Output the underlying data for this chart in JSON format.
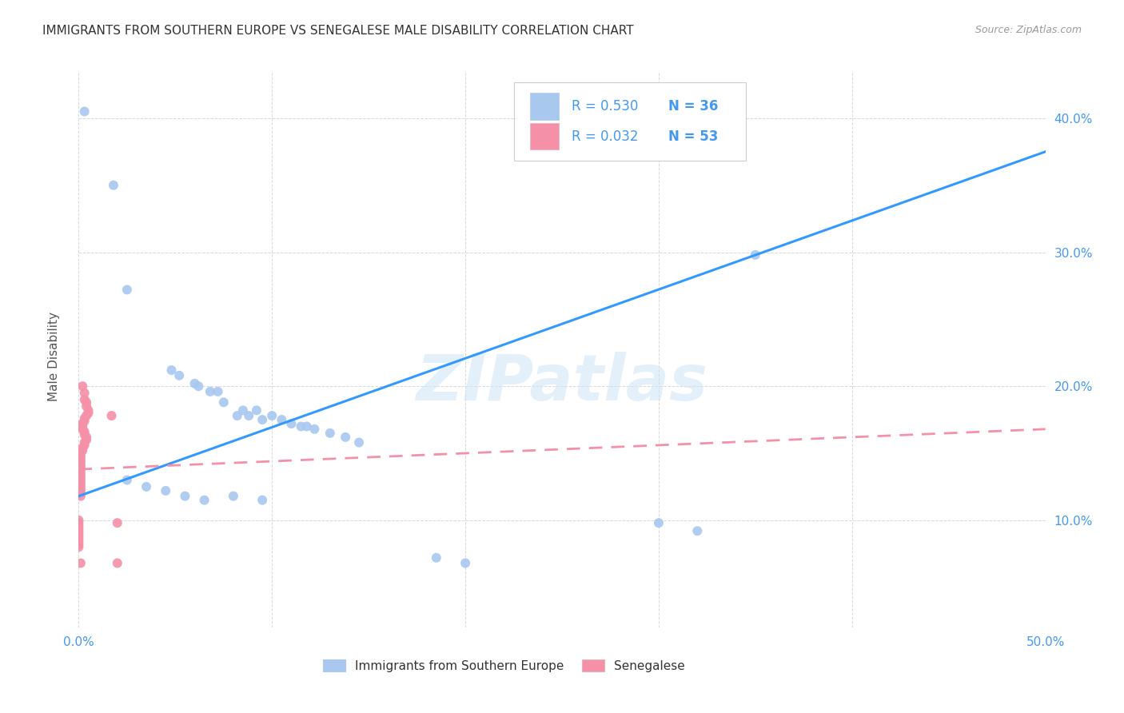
{
  "title": "IMMIGRANTS FROM SOUTHERN EUROPE VS SENEGALESE MALE DISABILITY CORRELATION CHART",
  "source": "Source: ZipAtlas.com",
  "ylabel": "Male Disability",
  "xlim": [
    0.0,
    0.5
  ],
  "ylim": [
    0.02,
    0.435
  ],
  "legend_blue_label": "Immigrants from Southern Europe",
  "legend_pink_label": "Senegalese",
  "watermark": "ZIPatlas",
  "dot_color_blue": "#a8c8f0",
  "dot_color_pink": "#f490a8",
  "line_color_blue": "#3399ff",
  "line_color_pink": "#f490a8",
  "blue_dots": [
    [
      0.003,
      0.405
    ],
    [
      0.018,
      0.35
    ],
    [
      0.025,
      0.272
    ],
    [
      0.048,
      0.212
    ],
    [
      0.052,
      0.208
    ],
    [
      0.06,
      0.202
    ],
    [
      0.062,
      0.2
    ],
    [
      0.068,
      0.196
    ],
    [
      0.072,
      0.196
    ],
    [
      0.075,
      0.188
    ],
    [
      0.082,
      0.178
    ],
    [
      0.085,
      0.182
    ],
    [
      0.088,
      0.178
    ],
    [
      0.092,
      0.182
    ],
    [
      0.095,
      0.175
    ],
    [
      0.1,
      0.178
    ],
    [
      0.105,
      0.175
    ],
    [
      0.11,
      0.172
    ],
    [
      0.115,
      0.17
    ],
    [
      0.118,
      0.17
    ],
    [
      0.122,
      0.168
    ],
    [
      0.13,
      0.165
    ],
    [
      0.138,
      0.162
    ],
    [
      0.145,
      0.158
    ],
    [
      0.025,
      0.13
    ],
    [
      0.035,
      0.125
    ],
    [
      0.045,
      0.122
    ],
    [
      0.055,
      0.118
    ],
    [
      0.065,
      0.115
    ],
    [
      0.08,
      0.118
    ],
    [
      0.095,
      0.115
    ],
    [
      0.35,
      0.298
    ],
    [
      0.3,
      0.098
    ],
    [
      0.32,
      0.092
    ],
    [
      0.185,
      0.072
    ],
    [
      0.2,
      0.068
    ]
  ],
  "pink_dots": [
    [
      0.002,
      0.2
    ],
    [
      0.003,
      0.195
    ],
    [
      0.003,
      0.19
    ],
    [
      0.004,
      0.188
    ],
    [
      0.004,
      0.185
    ],
    [
      0.005,
      0.182
    ],
    [
      0.005,
      0.18
    ],
    [
      0.004,
      0.178
    ],
    [
      0.003,
      0.176
    ],
    [
      0.003,
      0.174
    ],
    [
      0.002,
      0.172
    ],
    [
      0.002,
      0.17
    ],
    [
      0.002,
      0.168
    ],
    [
      0.003,
      0.166
    ],
    [
      0.003,
      0.164
    ],
    [
      0.004,
      0.162
    ],
    [
      0.004,
      0.16
    ],
    [
      0.003,
      0.158
    ],
    [
      0.003,
      0.156
    ],
    [
      0.002,
      0.154
    ],
    [
      0.002,
      0.152
    ],
    [
      0.001,
      0.15
    ],
    [
      0.001,
      0.148
    ],
    [
      0.001,
      0.146
    ],
    [
      0.001,
      0.144
    ],
    [
      0.001,
      0.142
    ],
    [
      0.001,
      0.14
    ],
    [
      0.001,
      0.138
    ],
    [
      0.001,
      0.136
    ],
    [
      0.001,
      0.134
    ],
    [
      0.001,
      0.132
    ],
    [
      0.001,
      0.13
    ],
    [
      0.001,
      0.128
    ],
    [
      0.001,
      0.126
    ],
    [
      0.001,
      0.124
    ],
    [
      0.001,
      0.122
    ],
    [
      0.001,
      0.12
    ],
    [
      0.001,
      0.118
    ],
    [
      0.017,
      0.178
    ],
    [
      0.02,
      0.098
    ],
    [
      0.001,
      0.068
    ],
    [
      0.02,
      0.068
    ],
    [
      0.0,
      0.1
    ],
    [
      0.0,
      0.098
    ],
    [
      0.0,
      0.096
    ],
    [
      0.0,
      0.094
    ],
    [
      0.0,
      0.092
    ],
    [
      0.0,
      0.09
    ],
    [
      0.0,
      0.088
    ],
    [
      0.0,
      0.086
    ],
    [
      0.0,
      0.084
    ],
    [
      0.0,
      0.082
    ],
    [
      0.0,
      0.08
    ]
  ],
  "blue_line_x": [
    0.0,
    0.5
  ],
  "blue_line_y": [
    0.118,
    0.375
  ],
  "pink_line_x": [
    0.0,
    0.5
  ],
  "pink_line_y": [
    0.138,
    0.168
  ],
  "background_color": "#ffffff",
  "grid_color": "#d8d8d8",
  "text_color_blue": "#4499ee",
  "title_color": "#333333",
  "axis_label_color": "#555555"
}
